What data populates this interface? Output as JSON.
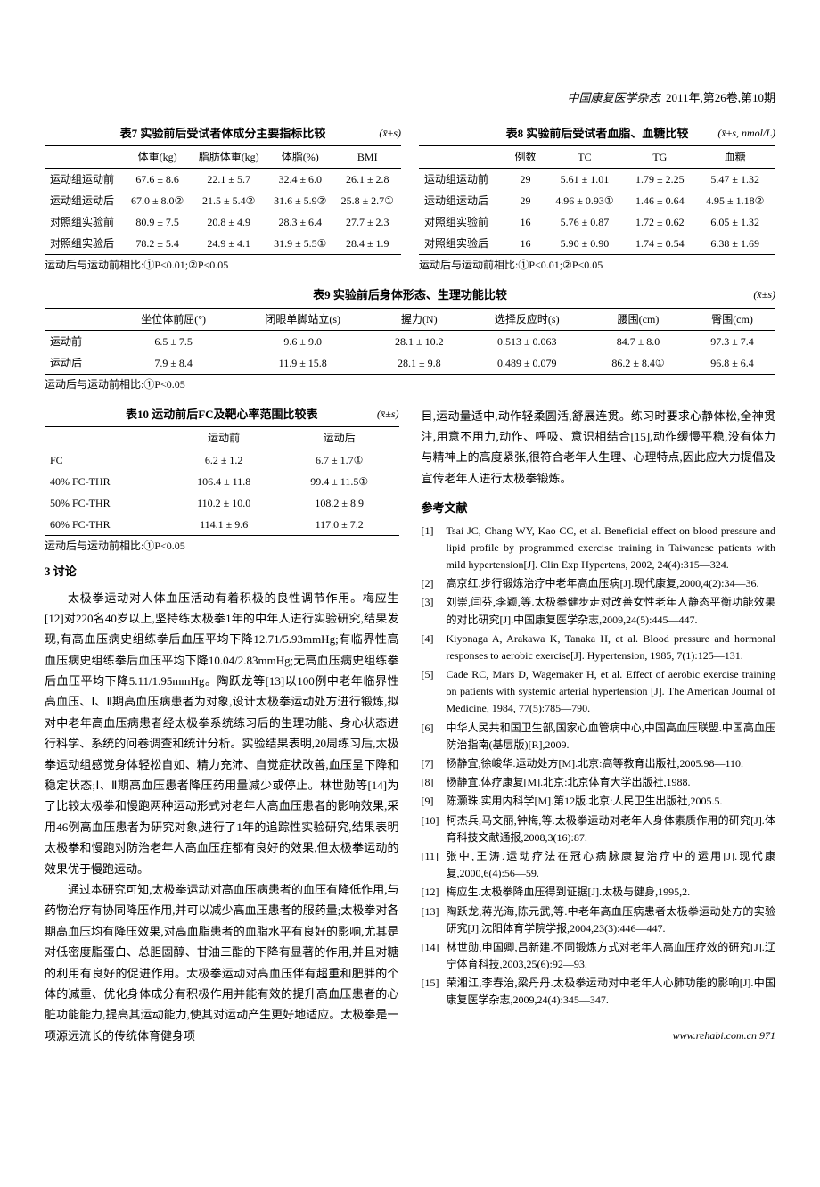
{
  "header": {
    "journal": "中国康复医学杂志",
    "issue": "2011年,第26卷,第10期"
  },
  "table7": {
    "title": "表7  实验前后受试者体成分主要指标比较",
    "unit": "(x̄±s)",
    "headers": [
      "",
      "体重(kg)",
      "脂肪体重(kg)",
      "体脂(%)",
      "BMI"
    ],
    "rows": [
      [
        "运动组运动前",
        "67.6 ± 8.6",
        "22.1 ± 5.7",
        "32.4 ± 6.0",
        "26.1 ± 2.8"
      ],
      [
        "运动组运动后",
        "67.0 ± 8.0②",
        "21.5 ± 5.4②",
        "31.6 ± 5.9②",
        "25.8 ± 2.7①"
      ],
      [
        "对照组实验前",
        "80.9 ± 7.5",
        "20.8 ± 4.9",
        "28.3 ± 6.4",
        "27.7 ± 2.3"
      ],
      [
        "对照组实验后",
        "78.2 ± 5.4",
        "24.9 ± 4.1",
        "31.9 ± 5.5①",
        "28.4 ± 1.9"
      ]
    ],
    "note": "运动后与运动前相比:①P<0.01;②P<0.05"
  },
  "table8": {
    "title": "表8  实验前后受试者血脂、血糖比较",
    "unit": "(x̄±s, nmol/L)",
    "headers": [
      "",
      "例数",
      "TC",
      "TG",
      "血糖"
    ],
    "rows": [
      [
        "运动组运动前",
        "29",
        "5.61 ± 1.01",
        "1.79 ± 2.25",
        "5.47 ± 1.32"
      ],
      [
        "运动组运动后",
        "29",
        "4.96 ± 0.93①",
        "1.46 ± 0.64",
        "4.95 ± 1.18②"
      ],
      [
        "对照组实验前",
        "16",
        "5.76 ± 0.87",
        "1.72 ± 0.62",
        "6.05 ± 1.32"
      ],
      [
        "对照组实验后",
        "16",
        "5.90 ± 0.90",
        "1.74 ± 0.54",
        "6.38 ± 1.69"
      ]
    ],
    "note": "运动后与运动前相比:①P<0.01;②P<0.05"
  },
  "table9": {
    "title": "表9  实验前后身体形态、生理功能比较",
    "unit": "(x̄±s)",
    "headers": [
      "",
      "坐位体前屈(°)",
      "闭眼单脚站立(s)",
      "握力(N)",
      "选择反应时(s)",
      "腰围(cm)",
      "臀围(cm)"
    ],
    "rows": [
      [
        "运动前",
        "6.5 ± 7.5",
        "9.6 ± 9.0",
        "28.1 ± 10.2",
        "0.513 ± 0.063",
        "84.7 ± 8.0",
        "97.3 ± 7.4"
      ],
      [
        "运动后",
        "7.9 ± 8.4",
        "11.9 ± 15.8",
        "28.1 ± 9.8",
        "0.489 ± 0.079",
        "86.2 ± 8.4①",
        "96.8 ± 6.4"
      ]
    ],
    "note": "运动后与运动前相比:①P<0.05"
  },
  "table10": {
    "title": "表10  运动前后FC及靶心率范围比较表",
    "unit": "(x̄±s)",
    "headers": [
      "",
      "运动前",
      "运动后"
    ],
    "rows": [
      [
        "FC",
        "6.2 ± 1.2",
        "6.7 ± 1.7①"
      ],
      [
        "40% FC-THR",
        "106.4 ± 11.8",
        "99.4 ± 11.5①"
      ],
      [
        "50% FC-THR",
        "110.2 ± 10.0",
        "108.2 ± 8.9"
      ],
      [
        "60% FC-THR",
        "114.1 ± 9.6",
        "117.0 ± 7.2"
      ]
    ],
    "note": "运动后与运动前相比:①P<0.05"
  },
  "discussion": {
    "title": "3  讨论",
    "para1": "太极拳运动对人体血压活动有着积极的良性调节作用。梅应生[12]对220名40岁以上,坚持练太极拳1年的中年人进行实验研究,结果发现,有高血压病史组练拳后血压平均下降12.71/5.93mmHg;有临界性高血压病史组练拳后血压平均下降10.04/2.83mmHg;无高血压病史组练拳后血压平均下降5.11/1.95mmHg。陶跃龙等[13]以100例中老年临界性高血压、Ⅰ、Ⅱ期高血压病患者为对象,设计太极拳运动处方进行锻炼,拟对中老年高血压病患者经太极拳系统练习后的生理功能、身心状态进行科学、系统的问卷调查和统计分析。实验结果表明,20周练习后,太极拳运动组感觉身体轻松自如、精力充沛、自觉症状改善,血压呈下降和稳定状态;Ⅰ、Ⅱ期高血压患者降压药用量减少或停止。林世勋等[14]为了比较太极拳和慢跑两种运动形式对老年人高血压患者的影响效果,采用46例高血压患者为研究对象,进行了1年的追踪性实验研究,结果表明太极拳和慢跑对防治老年人高血压症都有良好的效果,但太极拳运动的效果优于慢跑运动。",
    "para2": "通过本研究可知,太极拳运动对高血压病患者的血压有降低作用,与药物治疗有协同降压作用,并可以减少高血压患者的服药量;太极拳对各期高血压均有降压效果,对高血脂患者的血脂水平有良好的影响,尤其是对低密度脂蛋白、总胆固醇、甘油三酯的下降有显著的作用,并且对糖的利用有良好的促进作用。太极拳运动对高血压伴有超重和肥胖的个体的减重、优化身体成分有积极作用并能有效的提升高血压患者的心脏功能能力,提高其运动能力,使其对运动产生更好地适应。太极拳是一项源远流长的传统体育健身项",
    "para3": "目,运动量适中,动作轻柔圆活,舒展连贯。练习时要求心静体松,全神贯注,用意不用力,动作、呼吸、意识相结合[15],动作缓慢平稳,没有体力与精神上的高度紧张,很符合老年人生理、心理特点,因此应大力提倡及宣传老年人进行太极拳锻炼。"
  },
  "references": {
    "title": "参考文献",
    "items": [
      {
        "n": "[1]",
        "t": "Tsai JC, Chang WY, Kao CC, et al. Beneficial effect on blood pressure and lipid profile by programmed exercise training in Taiwanese patients with mild hypertension[J]. Clin Exp Hypertens, 2002, 24(4):315—324."
      },
      {
        "n": "[2]",
        "t": "高京红.步行锻炼治疗中老年高血压病[J].现代康复,2000,4(2):34—36."
      },
      {
        "n": "[3]",
        "t": "刘崇,闫芬,李颖,等.太极拳健步走对改善女性老年人静态平衡功能效果的对比研究[J].中国康复医学杂志,2009,24(5):445—447."
      },
      {
        "n": "[4]",
        "t": "Kiyonaga A, Arakawa K, Tanaka H, et al. Blood pressure and hormonal responses to aerobic exercise[J]. Hypertension, 1985, 7(1):125—131."
      },
      {
        "n": "[5]",
        "t": "Cade RC, Mars D, Wagemaker H, et al. Effect of aerobic exercise training on patients with systemic arterial hypertension [J]. The American Journal of Medicine, 1984, 77(5):785—790."
      },
      {
        "n": "[6]",
        "t": "中华人民共和国卫生部,国家心血管病中心,中国高血压联盟.中国高血压防治指南(基层版)[R],2009."
      },
      {
        "n": "[7]",
        "t": "杨静宜,徐峻华.运动处方[M].北京:高等教育出版社,2005.98—110."
      },
      {
        "n": "[8]",
        "t": "杨静宜.体疗康复[M].北京:北京体育大学出版社,1988."
      },
      {
        "n": "[9]",
        "t": "陈灏珠.实用内科学[M].第12版.北京:人民卫生出版社,2005.5."
      },
      {
        "n": "[10]",
        "t": "柯杰兵,马文丽,钟梅,等.太极拳运动对老年人身体素质作用的研究[J].体育科技文献通报,2008,3(16):87."
      },
      {
        "n": "[11]",
        "t": "张中,王涛.运动疗法在冠心病脉康复治疗中的运用[J].现代康复,2000,6(4):56—59."
      },
      {
        "n": "[12]",
        "t": "梅应生.太极拳降血压得到证据[J].太极与健身,1995,2."
      },
      {
        "n": "[13]",
        "t": "陶跃龙,蒋光海,陈元武,等.中老年高血压病患者太极拳运动处方的实验研究[J].沈阳体育学院学报,2004,23(3):446—447."
      },
      {
        "n": "[14]",
        "t": "林世勋,申国卿,吕新建.不同锻炼方式对老年人高血压疗效的研究[J].辽宁体育科技,2003,25(6):92—93."
      },
      {
        "n": "[15]",
        "t": "荣湘江,李春治,梁丹丹.太极拳运动对中老年人心肺功能的影响[J].中国康复医学杂志,2009,24(4):345—347."
      }
    ]
  },
  "footer": "www.rehabi.com.cn  971"
}
